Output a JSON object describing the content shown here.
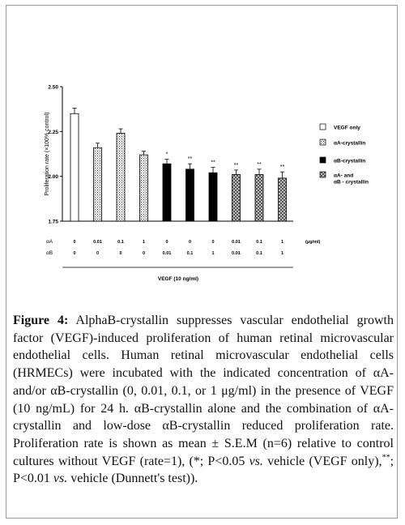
{
  "chart_data": {
    "type": "bar",
    "ylabel": "Proliferation rate  (×100% control)",
    "ylim": [
      1.75,
      2.5
    ],
    "yticks": [
      "1.75",
      "2.00",
      "2.25",
      "2.50"
    ],
    "groups": [
      "VEGF only",
      "αA-crystallin",
      "αA-crystallin",
      "αA-crystallin",
      "αB-crystallin",
      "αB-crystallin",
      "αB-crystallin",
      "αA- and αB - crystallin",
      "αA- and αB - crystallin",
      "αA- and αB - crystallin"
    ],
    "values": [
      2.35,
      2.16,
      2.24,
      2.12,
      2.07,
      2.04,
      2.02,
      2.01,
      2.01,
      1.99
    ],
    "errors": [
      0.03,
      0.025,
      0.025,
      0.02,
      0.025,
      0.03,
      0.03,
      0.025,
      0.03,
      0.035
    ],
    "significance": [
      "",
      "",
      "",
      "",
      "*",
      "**",
      "**",
      "**",
      "**",
      "**"
    ],
    "legend": [
      {
        "label": "VEGF only",
        "style": "white"
      },
      {
        "label": "αA-crystallin",
        "style": "dots"
      },
      {
        "label": "αB-crystallin",
        "style": "black"
      },
      {
        "label": "αA- and",
        "label2": "αB - crystallin",
        "style": "checker"
      }
    ],
    "legend_position": "right",
    "row_labels": [
      {
        "name": "αA",
        "values": [
          "0",
          "0.01",
          "0.1",
          "1",
          "0",
          "0",
          "0",
          "0.01",
          "0.1",
          "1"
        ],
        "unit": "(μg/ml)"
      },
      {
        "name": "αB",
        "values": [
          "0",
          "0",
          "0",
          "0",
          "0.01",
          "0.1",
          "1",
          "0.01",
          "0.1",
          "1"
        ],
        "unit": ""
      }
    ],
    "xlabel": "VEGF (10 ng/ml)",
    "grid": false
  },
  "caption": {
    "label": "Figure 4:",
    "p1": " AlphaB-crystallin suppresses vascular endothelial growth factor (VEGF)-induced proliferation of human retinal microvascular endothelial cells. Human retinal microvascular endothelial cells (HRMECs) were incubated with the indicated concentration of αA- and/or αB-crystallin (0, 0.01, 0.1, or 1 μg/ml) in the presence of VEGF (10 ng/mL) for 24 h. αB-crystallin alone and the combination of αA-crystallin and low-dose αB-crystallin reduced proliferation rate. Proliferation rate is shown as mean ± S.E.M (n=6) relative to control cultures without VEGF (rate=1), (*; P<0.05 ",
    "vs1": "vs.",
    "p2": " vehicle (VEGF only),",
    "sup": "**",
    "p3": "; P<0.01 ",
    "vs2": "vs.",
    "p4": " vehicle (Dunnett's test))."
  }
}
